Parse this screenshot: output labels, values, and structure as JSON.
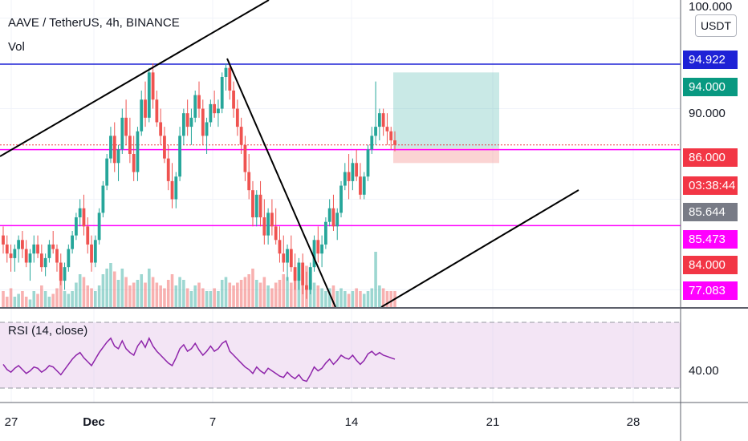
{
  "header": {
    "symbol_line": "AAVE / TetherUS, 4h, BINANCE",
    "volume_label": "Vol",
    "rsi_label": "RSI (14, close)"
  },
  "currency_button": "USDT",
  "price_axis": {
    "ticks": [
      "100.000",
      "90.000"
    ],
    "rsi_tick": "40.00"
  },
  "badges": [
    {
      "text": "94.922",
      "color": "#1e22d6",
      "role": "resistance-line-price"
    },
    {
      "text": "94.000",
      "color": "#089981",
      "role": "take-profit-price"
    },
    {
      "text": "86.000",
      "color": "#f23645",
      "role": "last-price"
    },
    {
      "text": "03:38:44",
      "color": "#f23645",
      "role": "bar-countdown"
    },
    {
      "text": "85.644",
      "color": "#787b86",
      "role": "entry-price"
    },
    {
      "text": "85.473",
      "color": "#ff00ff",
      "role": "support-line-price"
    },
    {
      "text": "84.000",
      "color": "#f23645",
      "role": "stop-loss-price"
    },
    {
      "text": "77.083",
      "color": "#ff00ff",
      "role": "lower-support-price"
    }
  ],
  "time_axis": [
    "27",
    "Dec",
    "7",
    "14",
    "21",
    "28"
  ],
  "colors": {
    "up": "#26a69a",
    "down": "#ef5350",
    "resistance": "#1e22d6",
    "support": "#ff00ff",
    "rsi_line": "#8e24aa",
    "rsi_band": "#e1bee7"
  },
  "chart_data": {
    "type": "candlestick",
    "title": "AAVE / TetherUS, 4h, BINANCE",
    "x_range": [
      "Nov 25",
      "Jan 1"
    ],
    "price_ylim": [
      68,
      102
    ],
    "rsi_ylim": [
      20,
      90
    ],
    "rsi_bands": [
      30,
      70
    ],
    "horizontal_levels": {
      "resistance": 94.922,
      "support_upper": 85.473,
      "support_lower": 77.083
    },
    "position": {
      "entry": 85.644,
      "take_profit": 94.0,
      "stop_loss": 84.0
    },
    "last_price": 86.0,
    "candles_ohlc": [
      [
        76,
        77,
        74,
        75
      ],
      [
        75,
        76,
        73,
        74
      ],
      [
        74,
        75,
        72,
        73.5
      ],
      [
        73.5,
        75,
        72,
        74.5
      ],
      [
        74.5,
        76,
        73,
        75.5
      ],
      [
        75.5,
        76.5,
        73.5,
        74.5
      ],
      [
        74.5,
        75.5,
        72.5,
        73
      ],
      [
        73,
        74.5,
        71,
        74
      ],
      [
        74,
        76,
        73,
        75
      ],
      [
        75,
        76,
        73.5,
        74
      ],
      [
        74,
        75,
        72,
        72.5
      ],
      [
        72.5,
        74,
        71.5,
        73.5
      ],
      [
        73.5,
        75.5,
        73,
        75
      ],
      [
        75,
        76.5,
        74,
        74.5
      ],
      [
        74.5,
        75,
        72,
        73
      ],
      [
        73,
        74,
        70.5,
        71
      ],
      [
        71,
        73,
        70,
        72.5
      ],
      [
        72.5,
        75,
        72,
        74.5
      ],
      [
        74.5,
        76.5,
        74,
        76
      ],
      [
        76,
        78.5,
        75.5,
        78
      ],
      [
        78,
        80,
        77,
        79
      ],
      [
        79,
        80.5,
        76,
        77
      ],
      [
        77,
        78,
        74,
        75
      ],
      [
        75,
        76,
        72,
        73
      ],
      [
        73,
        76,
        72.5,
        75.5
      ],
      [
        75.5,
        79,
        75,
        78.5
      ],
      [
        78.5,
        82,
        78,
        81.5
      ],
      [
        81.5,
        85,
        81,
        84.5
      ],
      [
        84.5,
        88,
        84,
        87
      ],
      [
        87,
        88.5,
        83,
        84
      ],
      [
        84,
        86,
        82,
        85.5
      ],
      [
        85.5,
        90,
        85,
        89
      ],
      [
        89,
        91,
        86,
        87
      ],
      [
        87,
        89,
        84,
        85
      ],
      [
        85,
        87,
        82,
        83
      ],
      [
        83,
        88,
        82,
        87.5
      ],
      [
        87.5,
        92,
        87,
        91
      ],
      [
        91,
        93,
        88,
        89
      ],
      [
        89,
        94.5,
        88.5,
        94
      ],
      [
        94,
        95,
        90,
        91
      ],
      [
        91,
        92,
        88,
        88.5
      ],
      [
        88.5,
        90,
        86,
        87
      ],
      [
        87,
        88,
        84,
        84.5
      ],
      [
        84.5,
        86,
        81,
        82
      ],
      [
        82,
        84,
        79,
        80
      ],
      [
        80,
        83,
        79,
        82.5
      ],
      [
        82.5,
        88,
        82,
        87
      ],
      [
        87,
        90,
        86,
        89.5
      ],
      [
        89.5,
        91,
        87,
        88
      ],
      [
        88,
        90,
        86,
        89
      ],
      [
        89,
        92,
        88.5,
        91.5
      ],
      [
        91.5,
        93,
        89,
        90
      ],
      [
        90,
        91,
        86,
        87
      ],
      [
        87,
        89,
        85,
        88.5
      ],
      [
        88.5,
        91,
        88,
        90.5
      ],
      [
        90.5,
        92,
        89,
        89.5
      ],
      [
        89.5,
        91,
        88,
        90
      ],
      [
        90,
        94,
        89.5,
        93.5
      ],
      [
        93.5,
        95,
        92,
        94.5
      ],
      [
        94.5,
        95,
        91,
        92
      ],
      [
        92,
        93,
        89,
        90
      ],
      [
        90,
        91,
        87,
        88
      ],
      [
        88,
        89,
        85,
        86
      ],
      [
        86,
        87,
        82,
        83
      ],
      [
        83,
        85,
        80,
        81
      ],
      [
        81,
        82,
        77,
        78
      ],
      [
        78,
        81,
        77,
        80.5
      ],
      [
        80.5,
        82,
        77,
        78
      ],
      [
        78,
        80,
        75,
        76
      ],
      [
        76,
        79,
        75,
        78.5
      ],
      [
        78.5,
        80,
        76,
        77
      ],
      [
        77,
        79,
        75,
        75.5
      ],
      [
        75.5,
        77,
        73,
        74
      ],
      [
        74,
        76,
        72,
        73
      ],
      [
        73,
        75,
        71,
        74.5
      ],
      [
        74.5,
        76,
        72,
        72.5
      ],
      [
        72.5,
        74,
        70,
        71
      ],
      [
        71,
        73.5,
        70,
        73
      ],
      [
        73,
        74,
        69.5,
        70.5
      ],
      [
        70.5,
        72,
        69,
        70
      ],
      [
        70,
        73,
        69.5,
        72.5
      ],
      [
        72.5,
        76,
        72,
        75.5
      ],
      [
        75.5,
        77,
        73,
        74
      ],
      [
        74,
        76,
        72.5,
        75
      ],
      [
        75,
        78,
        74.5,
        77.5
      ],
      [
        77.5,
        80,
        77,
        79
      ],
      [
        79,
        80.5,
        76.5,
        77
      ],
      [
        77,
        79,
        75.5,
        78.5
      ],
      [
        78.5,
        82,
        78,
        81.5
      ],
      [
        81.5,
        84,
        81,
        83
      ],
      [
        83,
        85,
        80,
        82
      ],
      [
        82,
        84.5,
        81,
        84
      ],
      [
        84,
        85.5,
        82,
        82.5
      ],
      [
        82.5,
        84,
        80,
        80.5
      ],
      [
        80.5,
        83,
        80,
        82.5
      ],
      [
        82.5,
        86,
        82,
        85.5
      ],
      [
        85.5,
        88,
        85,
        87
      ],
      [
        87,
        93,
        86,
        88
      ],
      [
        88,
        90,
        86.5,
        89.5
      ],
      [
        89.5,
        90,
        87,
        88
      ],
      [
        88,
        89.5,
        86,
        87.5
      ],
      [
        87.5,
        88,
        85.5,
        86.5
      ],
      [
        86.5,
        87.5,
        85.3,
        86
      ]
    ],
    "volume_relative": [
      0.3,
      0.2,
      0.35,
      0.2,
      0.25,
      0.3,
      0.2,
      0.15,
      0.3,
      0.25,
      0.4,
      0.3,
      0.2,
      0.25,
      0.35,
      0.5,
      0.3,
      0.25,
      0.3,
      0.45,
      0.6,
      0.55,
      0.4,
      0.35,
      0.3,
      0.4,
      0.6,
      0.7,
      0.8,
      0.65,
      0.5,
      0.7,
      0.55,
      0.4,
      0.45,
      0.5,
      0.6,
      0.45,
      0.7,
      0.55,
      0.45,
      0.4,
      0.35,
      0.5,
      0.6,
      0.4,
      0.55,
      0.5,
      0.35,
      0.3,
      0.4,
      0.45,
      0.35,
      0.3,
      0.3,
      0.35,
      0.3,
      0.5,
      0.55,
      0.45,
      0.4,
      0.45,
      0.5,
      0.55,
      0.6,
      0.7,
      0.5,
      0.45,
      0.55,
      0.4,
      0.35,
      0.45,
      0.5,
      0.6,
      0.55,
      0.45,
      0.7,
      0.6,
      0.8,
      0.75,
      0.5,
      0.45,
      0.4,
      0.35,
      0.3,
      0.35,
      0.4,
      0.3,
      0.35,
      0.3,
      0.25,
      0.3,
      0.35,
      0.3,
      0.25,
      0.3,
      0.35,
      1.0,
      0.4,
      0.35,
      0.3,
      0.3,
      0.3
    ],
    "rsi": [
      48,
      44,
      42,
      45,
      47,
      44,
      41,
      43,
      46,
      45,
      42,
      44,
      47,
      46,
      43,
      40,
      44,
      48,
      52,
      55,
      57,
      53,
      50,
      47,
      52,
      57,
      61,
      65,
      68,
      62,
      60,
      66,
      60,
      57,
      55,
      62,
      66,
      61,
      68,
      62,
      58,
      55,
      52,
      49,
      47,
      53,
      60,
      63,
      58,
      60,
      64,
      59,
      55,
      58,
      62,
      58,
      60,
      64,
      66,
      58,
      55,
      52,
      49,
      46,
      44,
      41,
      46,
      43,
      41,
      45,
      43,
      41,
      39,
      38,
      42,
      39,
      37,
      40,
      36,
      35,
      40,
      46,
      43,
      45,
      49,
      52,
      48,
      51,
      55,
      53,
      52,
      55,
      51,
      48,
      51,
      56,
      58,
      55,
      57,
      55,
      54,
      53,
      52
    ]
  }
}
